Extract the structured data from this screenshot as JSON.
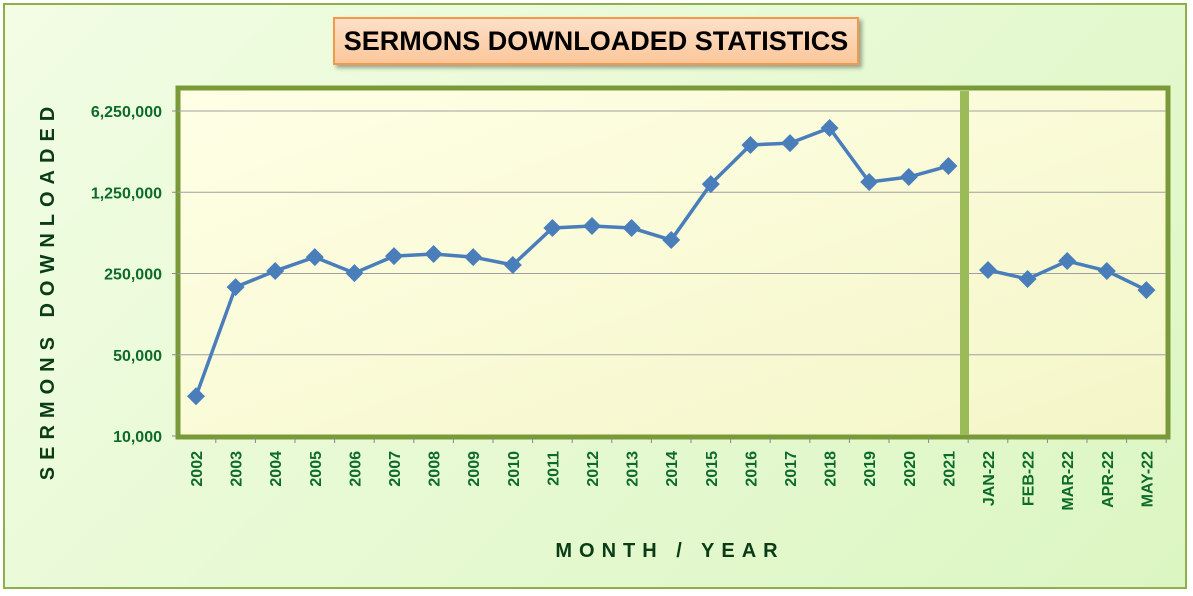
{
  "chart_data": {
    "type": "line",
    "title": "SERMONS DOWNLOADED STATISTICS",
    "xlabel": "MONTH / YEAR",
    "ylabel": "SERMONS DOWNLOADED",
    "yscale": "log5",
    "ylim": [
      10000,
      6250000
    ],
    "yticks": [
      10000,
      50000,
      250000,
      1250000,
      6250000
    ],
    "ytick_labels": [
      "10,000",
      "50,000",
      "250,000",
      "1,250,000",
      "6,250,000"
    ],
    "grid": true,
    "categories": [
      "2002",
      "2003",
      "2004",
      "2005",
      "2006",
      "2007",
      "2008",
      "2009",
      "2010",
      "2011",
      "2012",
      "2013",
      "2014",
      "2015",
      "2016",
      "2017",
      "2018",
      "2019",
      "2020",
      "2021",
      "JAN-22",
      "FEB-22",
      "MAR-22",
      "APR-22",
      "MAY-22"
    ],
    "series_yearly": [
      22000,
      191000,
      263000,
      346000,
      252000,
      353000,
      368000,
      346000,
      296000,
      616000,
      641000,
      616000,
      485000,
      1470000,
      3190000,
      3310000,
      4460000,
      1530000,
      1690000,
      2100000
    ],
    "series_monthly": [
      268000,
      224000,
      320000,
      263000,
      180000
    ],
    "colors": {
      "line": "#4a7ebb",
      "plot_bg": "#ffffe0",
      "separator": "#9bbb59",
      "tick_text": "#0d6b2a"
    }
  }
}
